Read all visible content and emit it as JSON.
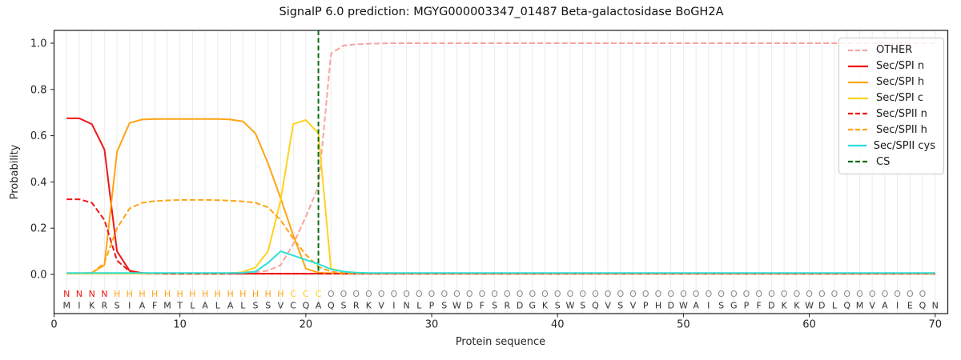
{
  "title": "SignalP 6.0 prediction: MGYG000003347_01487 Beta-galactosidase BoGH2A",
  "axes": {
    "xlabel": "Protein sequence",
    "ylabel": "Probability",
    "x_ticks": [
      0,
      10,
      20,
      30,
      40,
      50,
      60,
      70
    ],
    "y_tick_values": [
      0.0,
      0.2,
      0.4,
      0.6,
      0.8,
      1.0
    ],
    "y_tick_labels": [
      "0.0",
      "0.2",
      "0.4",
      "0.6",
      "0.8",
      "1.0"
    ]
  },
  "colors": {
    "red": "#f01616",
    "orange": "#ffa413",
    "gold": "#ffd21e",
    "pink": "#f5a5a3",
    "cyan": "#2ce0da",
    "green": "#0a6a14",
    "gray": "#8a8a8a",
    "seq_text": "#333333",
    "grid": "#ebebeb",
    "spine": "#1a1a1a"
  },
  "legend": [
    {
      "label": "OTHER",
      "color": "pink",
      "dashed": true
    },
    {
      "label": "Sec/SPI n",
      "color": "red",
      "dashed": false
    },
    {
      "label": "Sec/SPI h",
      "color": "orange",
      "dashed": false
    },
    {
      "label": "Sec/SPI c",
      "color": "gold",
      "dashed": false
    },
    {
      "label": "Sec/SPII n",
      "color": "red",
      "dashed": true
    },
    {
      "label": "Sec/SPII h",
      "color": "orange",
      "dashed": true
    },
    {
      "label": "Sec/SPII cys",
      "color": "cyan",
      "dashed": false
    },
    {
      "label": "CS",
      "color": "green",
      "dashed": true
    }
  ],
  "sequence": {
    "residues": "MIKRSIAFMTLALALSSVCQAQSRKVINLPSWDFSRDGKSWSQVSVPHDWAISGPFDKKWDLQMVAIEQN",
    "region_labels": "NNNNHHHHHHHHHHHHHHCCCOOOOOOOOOOOOOOOOOOOOOOOOOOOOOOOOOOOOOOOOOOOOOOOO",
    "label_colors": {
      "N": "red",
      "H": "orange",
      "C": "gold",
      "O": "gray"
    }
  },
  "chart_data": {
    "type": "line",
    "title": "SignalP 6.0 prediction: MGYG000003347_01487 Beta-galactosidase BoGH2A",
    "xlabel": "Protein sequence",
    "ylabel": "Probability",
    "xlim": [
      0,
      71
    ],
    "ylim": [
      -0.17,
      1.06
    ],
    "grid": "vertical-line-per-residue",
    "legend_position": "upper right",
    "x": [
      1,
      2,
      3,
      4,
      5,
      6,
      7,
      8,
      9,
      10,
      11,
      12,
      13,
      14,
      15,
      16,
      17,
      18,
      19,
      20,
      21,
      22,
      23,
      24,
      25,
      26,
      27,
      28,
      29,
      30,
      31,
      32,
      33,
      34,
      35,
      36,
      37,
      38,
      39,
      40,
      41,
      42,
      43,
      44,
      45,
      46,
      47,
      48,
      49,
      50,
      51,
      52,
      53,
      54,
      55,
      56,
      57,
      58,
      59,
      60,
      61,
      62,
      63,
      64,
      65,
      66,
      67,
      68,
      69,
      70
    ],
    "series": [
      {
        "name": "OTHER",
        "color": "pink",
        "dashed": true,
        "values": [
          0.005,
          0.005,
          0.005,
          0.005,
          0.005,
          0.005,
          0.005,
          0.005,
          0.005,
          0.005,
          0.005,
          0.005,
          0.005,
          0.006,
          0.008,
          0.01,
          0.016,
          0.04,
          0.13,
          0.25,
          0.38,
          0.955,
          0.99,
          0.995,
          0.998,
          0.999,
          1,
          1,
          1,
          1,
          1,
          1,
          1,
          1,
          1,
          1,
          1,
          1,
          1,
          1,
          1,
          1,
          1,
          1,
          1,
          1,
          1,
          1,
          1,
          1,
          1,
          1,
          1,
          1,
          1,
          1,
          1,
          1,
          1,
          1,
          1,
          1,
          1,
          1,
          1,
          1,
          1,
          1,
          1,
          1
        ]
      },
      {
        "name": "Sec/SPI n",
        "color": "red",
        "dashed": false,
        "values": [
          0.675,
          0.675,
          0.65,
          0.54,
          0.1,
          0.016,
          0.006,
          0.004,
          0.003,
          0.003,
          0.003,
          0.003,
          0.003,
          0.003,
          0.003,
          0.003,
          0.003,
          0.003,
          0.003,
          0.003,
          0.003,
          0.003,
          0.003,
          0.003,
          0.003,
          0.003,
          0.003,
          0.003,
          0.003,
          0.003,
          0.003,
          0.003,
          0.003,
          0.003,
          0.003,
          0.003,
          0.003,
          0.003,
          0.003,
          0.003,
          0.003,
          0.003,
          0.003,
          0.003,
          0.003,
          0.003,
          0.003,
          0.003,
          0.003,
          0.003,
          0.003,
          0.003,
          0.003,
          0.003,
          0.003,
          0.003,
          0.003,
          0.003,
          0.003,
          0.003,
          0.003,
          0.003,
          0.003,
          0.003,
          0.003,
          0.003,
          0.003,
          0.003,
          0.003,
          0.003
        ]
      },
      {
        "name": "Sec/SPI h",
        "color": "orange",
        "dashed": false,
        "values": [
          0.004,
          0.004,
          0.007,
          0.04,
          0.53,
          0.655,
          0.67,
          0.672,
          0.672,
          0.672,
          0.672,
          0.672,
          0.672,
          0.67,
          0.662,
          0.61,
          0.48,
          0.33,
          0.17,
          0.025,
          0.008,
          0.005,
          0.004,
          0.004,
          0.004,
          0.004,
          0.004,
          0.004,
          0.004,
          0.004,
          0.004,
          0.004,
          0.004,
          0.004,
          0.004,
          0.004,
          0.004,
          0.004,
          0.004,
          0.004,
          0.004,
          0.004,
          0.004,
          0.004,
          0.004,
          0.004,
          0.004,
          0.004,
          0.004,
          0.004,
          0.004,
          0.004,
          0.004,
          0.004,
          0.004,
          0.004,
          0.004,
          0.004,
          0.004,
          0.004,
          0.004,
          0.004,
          0.004,
          0.004,
          0.004,
          0.004,
          0.004,
          0.004,
          0.004,
          0.004
        ]
      },
      {
        "name": "Sec/SPI c",
        "color": "gold",
        "dashed": false,
        "values": [
          0.003,
          0.003,
          0.003,
          0.003,
          0.003,
          0.003,
          0.003,
          0.003,
          0.003,
          0.003,
          0.003,
          0.003,
          0.003,
          0.004,
          0.01,
          0.03,
          0.1,
          0.32,
          0.65,
          0.668,
          0.61,
          0.025,
          0.012,
          0.005,
          0.005,
          0.005,
          0.005,
          0.005,
          0.005,
          0.005,
          0.005,
          0.005,
          0.005,
          0.005,
          0.005,
          0.005,
          0.005,
          0.005,
          0.005,
          0.005,
          0.005,
          0.005,
          0.005,
          0.005,
          0.005,
          0.005,
          0.005,
          0.005,
          0.005,
          0.005,
          0.005,
          0.005,
          0.005,
          0.005,
          0.005,
          0.005,
          0.005,
          0.005,
          0.005,
          0.005,
          0.005,
          0.005,
          0.005,
          0.005,
          0.005,
          0.005,
          0.005,
          0.005,
          0.005,
          0.005
        ]
      },
      {
        "name": "Sec/SPII n",
        "color": "red",
        "dashed": true,
        "values": [
          0.325,
          0.325,
          0.31,
          0.235,
          0.06,
          0.014,
          0.006,
          0.004,
          0.003,
          0.003,
          0.003,
          0.003,
          0.003,
          0.003,
          0.003,
          0.003,
          0.003,
          0.003,
          0.003,
          0.003,
          0.003,
          0.003,
          0.003,
          0.003,
          0.003,
          0.003,
          0.003,
          0.003,
          0.003,
          0.003,
          0.003,
          0.003,
          0.003,
          0.003,
          0.003,
          0.003,
          0.003,
          0.003,
          0.003,
          0.003,
          0.003,
          0.003,
          0.003,
          0.003,
          0.003,
          0.003,
          0.003,
          0.003,
          0.003,
          0.003,
          0.003,
          0.003,
          0.003,
          0.003,
          0.003,
          0.003,
          0.003,
          0.003,
          0.003,
          0.003,
          0.003,
          0.003,
          0.003,
          0.003,
          0.003,
          0.003,
          0.003,
          0.003,
          0.003,
          0.003
        ]
      },
      {
        "name": "Sec/SPII h",
        "color": "orange",
        "dashed": true,
        "values": [
          0.004,
          0.004,
          0.006,
          0.05,
          0.2,
          0.285,
          0.31,
          0.317,
          0.32,
          0.322,
          0.322,
          0.322,
          0.321,
          0.319,
          0.316,
          0.31,
          0.29,
          0.235,
          0.155,
          0.085,
          0.033,
          0.012,
          0.006,
          0.004,
          0.004,
          0.004,
          0.004,
          0.004,
          0.004,
          0.004,
          0.004,
          0.004,
          0.004,
          0.004,
          0.004,
          0.004,
          0.004,
          0.004,
          0.004,
          0.004,
          0.004,
          0.004,
          0.004,
          0.004,
          0.004,
          0.004,
          0.004,
          0.004,
          0.004,
          0.004,
          0.004,
          0.004,
          0.004,
          0.004,
          0.004,
          0.004,
          0.004,
          0.004,
          0.004,
          0.004,
          0.004,
          0.004,
          0.004,
          0.004,
          0.004,
          0.004,
          0.004,
          0.004,
          0.004,
          0.004
        ]
      },
      {
        "name": "Sec/SPII cys",
        "color": "cyan",
        "dashed": false,
        "values": [
          0.006,
          0.006,
          0.006,
          0.006,
          0.006,
          0.006,
          0.006,
          0.006,
          0.006,
          0.006,
          0.006,
          0.006,
          0.006,
          0.006,
          0.007,
          0.012,
          0.05,
          0.1,
          0.082,
          0.063,
          0.045,
          0.022,
          0.012,
          0.008,
          0.006,
          0.006,
          0.006,
          0.006,
          0.006,
          0.006,
          0.006,
          0.006,
          0.006,
          0.006,
          0.006,
          0.006,
          0.006,
          0.006,
          0.006,
          0.006,
          0.006,
          0.006,
          0.006,
          0.006,
          0.006,
          0.006,
          0.006,
          0.006,
          0.006,
          0.006,
          0.006,
          0.006,
          0.006,
          0.006,
          0.006,
          0.006,
          0.006,
          0.006,
          0.006,
          0.006,
          0.006,
          0.006,
          0.006,
          0.006,
          0.006,
          0.006,
          0.006,
          0.006,
          0.006,
          0.006
        ]
      }
    ],
    "cs_marker": {
      "label": "CS",
      "x": 21,
      "color": "green",
      "dashed": true
    }
  }
}
